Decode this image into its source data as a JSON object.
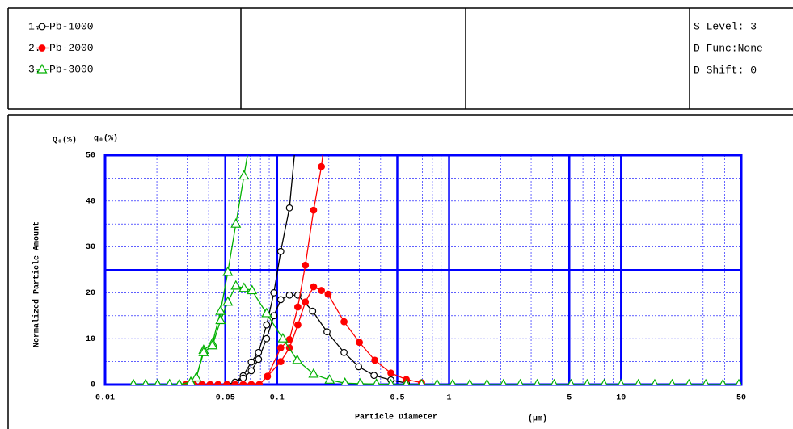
{
  "chart_data": {
    "type": "line",
    "xscale": "log",
    "xlim": [
      0.01,
      50
    ],
    "ylim": [
      0,
      50
    ],
    "xticks": [
      0.01,
      0.05,
      0.1,
      0.5,
      1,
      5,
      10,
      50
    ],
    "yticks": [
      0,
      10,
      20,
      30,
      40,
      50
    ],
    "grid": true,
    "grid_color": "#0000ff",
    "ylabel": "Normalized Particle Amount",
    "y_axis_titles": [
      "Q₀(%)",
      "q₀(%)"
    ],
    "xlabel": "Particle Diameter",
    "xunit": "(μm)",
    "header_settings": [
      "S Level: 3",
      "D Func:None",
      "D Shift: 0"
    ],
    "series": [
      {
        "number": "1.",
        "name": "Pb-1000",
        "color": "#000000",
        "marker": "open-circle",
        "x": [
          0.0511,
          0.057,
          0.0635,
          0.0708,
          0.078,
          0.0869,
          0.0958,
          0.105,
          0.118,
          0.132,
          0.161,
          0.195,
          0.245,
          0.298,
          0.366,
          0.459,
          0.564
        ],
        "cumulative": [
          0,
          0.5,
          1.9,
          4.9,
          7,
          13,
          20,
          29,
          38.5,
          58,
          null,
          null,
          null,
          null,
          null,
          null,
          null
        ],
        "frequency": [
          0,
          0.5,
          1.4,
          3,
          5.5,
          10,
          15,
          18.5,
          19.5,
          19.5,
          16,
          11.5,
          7,
          3.9,
          2,
          1,
          0.3
        ]
      },
      {
        "number": "2.",
        "name": "Pb-2000",
        "color": "#ff0000",
        "marker": "filled-circle",
        "x": [
          0.0295,
          0.0328,
          0.0366,
          0.0408,
          0.0454,
          0.0511,
          0.057,
          0.0635,
          0.0708,
          0.0788,
          0.0879,
          0.105,
          0.118,
          0.132,
          0.146,
          0.163,
          0.181,
          0.198,
          0.245,
          0.301,
          0.37,
          0.459,
          0.564,
          0.692
        ],
        "cumulative": [
          0,
          0,
          0,
          0,
          0,
          0,
          0,
          0,
          0,
          0,
          1.8,
          8,
          9.8,
          16.9,
          26,
          38,
          47.5,
          60,
          null,
          null,
          null,
          null,
          null,
          null
        ],
        "frequency": [
          0,
          0,
          0,
          0,
          0,
          0,
          0,
          0,
          0,
          0,
          1.8,
          5,
          8,
          13,
          18,
          21.3,
          20.5,
          19.7,
          13.7,
          9.2,
          5.3,
          2.5,
          1.1,
          0.4
        ]
      },
      {
        "number": "3.",
        "name": "Pb-3000",
        "color": "#00b000",
        "marker": "open-triangle",
        "x": [
          0.0146,
          0.0172,
          0.0202,
          0.0237,
          0.027,
          0.0315,
          0.0339,
          0.0374,
          0.0421,
          0.0469,
          0.0517,
          0.0576,
          0.0642,
          0.0715,
          0.0869,
          0.108,
          0.131,
          0.163,
          0.202,
          0.248,
          0.305,
          0.378,
          0.459,
          0.564,
          0.692,
          0.851,
          1.05,
          1.32,
          1.66,
          2.07,
          2.59,
          3.25,
          4.08,
          5.12,
          6.35,
          7.97,
          10,
          12.6,
          15.7,
          19.8,
          24.8,
          31.1,
          39.1,
          48.4
        ],
        "cumulative": [
          0,
          0,
          0,
          0,
          0,
          0.5,
          1.5,
          7.5,
          9,
          16,
          24.5,
          35,
          45.5,
          56,
          null,
          null,
          null,
          null,
          null,
          null,
          null,
          null,
          null,
          null,
          null,
          null,
          null,
          null,
          null,
          null,
          null,
          null,
          null,
          null,
          null,
          null,
          null,
          null,
          null,
          null,
          null,
          null,
          null,
          null
        ],
        "frequency": [
          0,
          0,
          0,
          0,
          0,
          0.5,
          1.5,
          7,
          8.5,
          14,
          18,
          21.5,
          21,
          20.5,
          15.5,
          10,
          5.3,
          2.3,
          1,
          0.3,
          0.2,
          0.1,
          0,
          0,
          0,
          0,
          0,
          0,
          0,
          0,
          0,
          0,
          0,
          0,
          0,
          0,
          0,
          0,
          0,
          0,
          0,
          0,
          0,
          0
        ]
      }
    ]
  }
}
